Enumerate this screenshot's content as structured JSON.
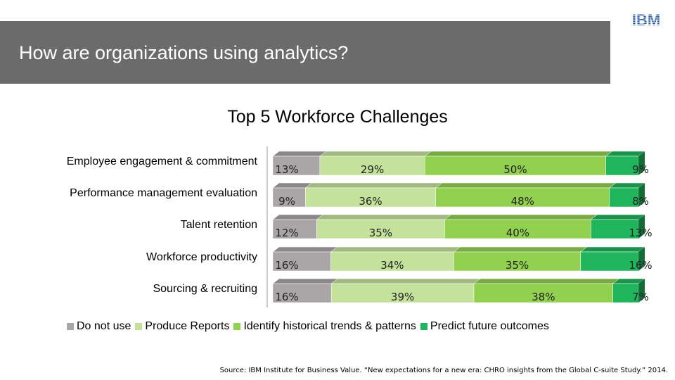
{
  "header": {
    "title": "How are organizations using analytics?",
    "logo_text": "IBM"
  },
  "colors": {
    "header_band": "#6b6b6b",
    "do_not_use": "#aaa6a8",
    "produce_reports": "#c4e29c",
    "identify_trends": "#92d050",
    "predict_outcomes": "#1fb55a",
    "logo": "#2a5fa8"
  },
  "chart_data": {
    "type": "bar",
    "orientation": "horizontal",
    "stacked": "100%",
    "title": "Top 5 Workforce Challenges",
    "categories": [
      "Employee engagement & commitment",
      "Performance management evaluation",
      "Talent retention",
      "Workforce productivity",
      "Sourcing & recruiting"
    ],
    "series": [
      {
        "name": "Do not use",
        "values": [
          13,
          9,
          12,
          16,
          16
        ],
        "labels": [
          "13%",
          "9%",
          "12%",
          "16%",
          "16%"
        ]
      },
      {
        "name": "Produce Reports",
        "values": [
          29,
          36,
          35,
          34,
          39
        ],
        "labels": [
          "29%",
          "36%",
          "35%",
          "34%",
          "39%"
        ]
      },
      {
        "name": "Identify historical trends & patterns",
        "values": [
          50,
          48,
          40,
          35,
          38
        ],
        "labels": [
          "50%",
          "48%",
          "40%",
          "35%",
          "38%"
        ]
      },
      {
        "name": "Predict future outcomes",
        "values": [
          9,
          8,
          13,
          16,
          7
        ],
        "labels": [
          "9%",
          "8%",
          "13%",
          "16%",
          "7%"
        ]
      }
    ],
    "legend_position": "bottom",
    "grid": false
  },
  "source": "Source: IBM Institute for Business Value. “New expectations for a new era: CHRO insights from the Global C-suite Study.” 2014."
}
